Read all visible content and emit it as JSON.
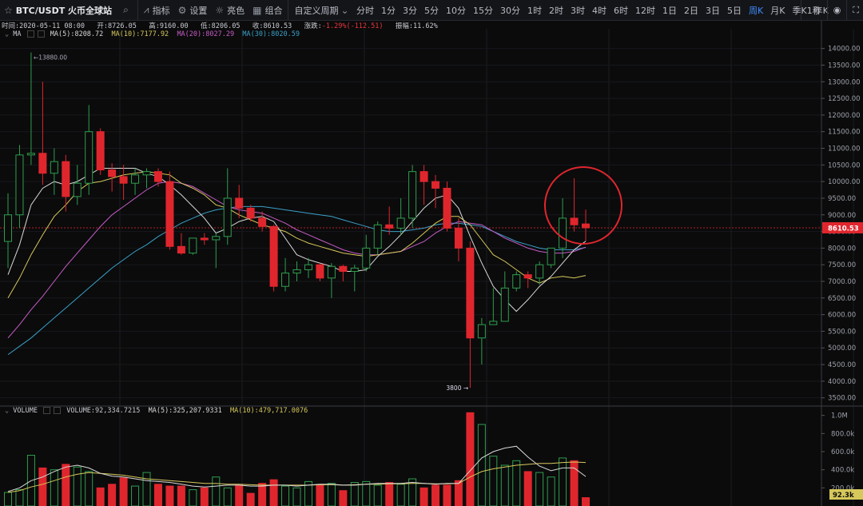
{
  "toolbar": {
    "symbol": "BTC/USDT 火币全球站",
    "indicators_label": "指标",
    "settings_label": "设置",
    "theme_label": "亮色",
    "combo_label": "组合",
    "custom_period_label": "自定义周期",
    "periods": [
      "分时",
      "1分",
      "3分",
      "5分",
      "10分",
      "15分",
      "30分",
      "1时",
      "2时",
      "3时",
      "4时",
      "6时",
      "12时",
      "1日",
      "2日",
      "3日",
      "5日",
      "周K",
      "月K",
      "季K",
      "年K"
    ],
    "active_period": "周K",
    "interval_label": "1秒"
  },
  "info": {
    "time_label": "时间:",
    "time": "2020-05-11 08:00",
    "open_label": "开:",
    "open": "8726.05",
    "high_label": "高:",
    "high": "9160.00",
    "low_label": "低:",
    "low": "8206.05",
    "close_label": "收:",
    "close": "8610.53",
    "change_label": "涨跌:",
    "change": "-1.29%(-112.51)",
    "amp_label": "振幅:",
    "amp": "11.62%"
  },
  "ma_legend": {
    "name": "MA",
    "ma5": "MA(5):8208.72",
    "ma10": "MA(10):7177.92",
    "ma20": "MA(20):8027.29",
    "ma30": "MA(30):8020.59"
  },
  "vol_legend": {
    "name": "VOLUME",
    "vol": "VOLUME:92,334.7215",
    "ma5": "MA(5):325,207.9331",
    "ma10": "MA(10):479,717.0076"
  },
  "colors": {
    "up": "#2f9e4d",
    "down": "#e0262d",
    "ma5": "#d8d8d8",
    "ma10": "#d6c85a",
    "ma20": "#c65cc6",
    "ma30": "#3aa0c8",
    "annotation": "#e0262d"
  },
  "chart_data": [
    {
      "type": "candlestick",
      "price_axis": {
        "ticks": [
          "14000.00",
          "13500.00",
          "13000.00",
          "12500.00",
          "12000.00",
          "11500.00",
          "11000.00",
          "10500.00",
          "10000.00",
          "9500.00",
          "9000.00",
          "8500.00",
          "8000.00",
          "7500.00",
          "7000.00",
          "6500.00",
          "6000.00",
          "5500.00",
          "5000.00",
          "4500.00",
          "4000.00",
          "3500.00"
        ],
        "ylim": [
          3300,
          14400
        ]
      },
      "current_price": "8610.53",
      "high_marker": "←13880.00",
      "low_marker": "3800 →",
      "candles": [
        [
          8200,
          9650,
          7400,
          9000
        ],
        [
          9000,
          11100,
          8600,
          10800
        ],
        [
          10800,
          13880,
          10500,
          10850
        ],
        [
          10850,
          13000,
          9900,
          10250
        ],
        [
          10250,
          11000,
          9600,
          10600
        ],
        [
          10600,
          10800,
          9100,
          9550
        ],
        [
          9550,
          10500,
          9300,
          9950
        ],
        [
          9950,
          12300,
          9600,
          11500
        ],
        [
          11500,
          11600,
          10200,
          10350
        ],
        [
          10350,
          10550,
          9700,
          10150
        ],
        [
          10150,
          10500,
          9450,
          9950
        ],
        [
          9950,
          10400,
          9600,
          10200
        ],
        [
          10200,
          10400,
          9800,
          10300
        ],
        [
          10300,
          10400,
          9850,
          10000
        ],
        [
          10000,
          10300,
          7950,
          8050
        ],
        [
          8050,
          8450,
          7800,
          7850
        ],
        [
          7850,
          8300,
          7800,
          8300
        ],
        [
          8300,
          8450,
          8100,
          8250
        ],
        [
          8250,
          8450,
          7400,
          8350
        ],
        [
          8350,
          10400,
          8100,
          9500
        ],
        [
          9500,
          9900,
          8900,
          9200
        ],
        [
          9200,
          9300,
          8800,
          8900
        ],
        [
          8900,
          9100,
          8500,
          8650
        ],
        [
          8650,
          8700,
          6700,
          6850
        ],
        [
          6850,
          7700,
          6700,
          7250
        ],
        [
          7250,
          7600,
          7000,
          7350
        ],
        [
          7350,
          7700,
          7100,
          7500
        ],
        [
          7500,
          7550,
          7000,
          7100
        ],
        [
          7100,
          7550,
          6500,
          7450
        ],
        [
          7450,
          7500,
          7000,
          7300
        ],
        [
          7300,
          7500,
          6700,
          7400
        ],
        [
          7400,
          8400,
          7300,
          8000
        ],
        [
          8000,
          8800,
          7800,
          8700
        ],
        [
          8700,
          9250,
          8400,
          8600
        ],
        [
          8600,
          9500,
          8400,
          8900
        ],
        [
          8900,
          10500,
          8600,
          10300
        ],
        [
          10300,
          10500,
          9300,
          10000
        ],
        [
          10000,
          10200,
          9200,
          9800
        ],
        [
          9800,
          10000,
          8500,
          8600
        ],
        [
          8600,
          8900,
          7600,
          8000
        ],
        [
          8000,
          8200,
          3800,
          5300
        ],
        [
          5300,
          5900,
          4500,
          5700
        ],
        [
          5700,
          6800,
          5700,
          5800
        ],
        [
          5800,
          7300,
          5800,
          6800
        ],
        [
          6800,
          7300,
          6700,
          7200
        ],
        [
          7200,
          7300,
          6800,
          7100
        ],
        [
          7100,
          7600,
          6900,
          7500
        ],
        [
          7500,
          8000,
          7400,
          8000
        ],
        [
          8000,
          9500,
          7700,
          8900
        ],
        [
          8900,
          10100,
          8500,
          8700
        ],
        [
          8726.05,
          9160,
          8206.05,
          8610.53
        ]
      ],
      "ma5": [
        7200,
        8100,
        9300,
        9800,
        10000,
        9900,
        10000,
        10200,
        10400,
        10400,
        10400,
        10400,
        10250,
        10150,
        9900,
        9600,
        9250,
        8900,
        8450,
        8600,
        8800,
        8900,
        8950,
        8800,
        8300,
        7800,
        7650,
        7550,
        7450,
        7300,
        7300,
        7350,
        7750,
        8050,
        8400,
        8800,
        9200,
        9500,
        9600,
        9200,
        8350,
        7550,
        6850,
        6450,
        6100,
        6450,
        6850,
        7150,
        7550,
        7950,
        8208.72
      ],
      "ma10": [
        6500,
        7100,
        7800,
        8400,
        8950,
        9300,
        9700,
        9950,
        10000,
        10100,
        10200,
        10250,
        10300,
        10250,
        10200,
        9950,
        9800,
        9600,
        9300,
        9200,
        9000,
        8850,
        8700,
        8600,
        8500,
        8300,
        8150,
        8050,
        7950,
        7850,
        7800,
        7750,
        7800,
        7850,
        7900,
        8150,
        8450,
        8750,
        8950,
        8950,
        8700,
        8250,
        7800,
        7600,
        7350,
        7100,
        6950,
        7100,
        7150,
        7100,
        7177.92
      ],
      "ma20": [
        5300,
        5700,
        6150,
        6550,
        7000,
        7450,
        7850,
        8250,
        8650,
        9000,
        9250,
        9500,
        9750,
        9950,
        10000,
        9950,
        9850,
        9650,
        9450,
        9250,
        9150,
        9100,
        9050,
        8900,
        8750,
        8550,
        8400,
        8250,
        8100,
        7950,
        7850,
        7800,
        7800,
        7850,
        7900,
        8050,
        8200,
        8450,
        8650,
        8800,
        8750,
        8700,
        8500,
        8300,
        8150,
        8000,
        7900,
        7850,
        7850,
        7900,
        8027.29
      ],
      "ma30": [
        4800,
        5050,
        5300,
        5600,
        5900,
        6200,
        6500,
        6800,
        7100,
        7400,
        7650,
        7900,
        8100,
        8350,
        8550,
        8750,
        8900,
        9050,
        9150,
        9200,
        9250,
        9250,
        9250,
        9200,
        9150,
        9100,
        9050,
        9000,
        8950,
        8850,
        8750,
        8650,
        8550,
        8500,
        8500,
        8550,
        8600,
        8700,
        8750,
        8750,
        8700,
        8650,
        8500,
        8350,
        8200,
        8100,
        8000,
        7950,
        7950,
        7950,
        8020.59
      ]
    },
    {
      "type": "bar",
      "volume_axis": {
        "ticks": [
          "1.0M",
          "800.0k",
          "600.0k",
          "400.0k",
          "200.0k"
        ],
        "ylim": [
          0,
          1050000
        ]
      },
      "current_volume": "92.3k",
      "values": [
        150000,
        180000,
        560000,
        420000,
        400000,
        460000,
        430000,
        380000,
        200000,
        240000,
        310000,
        220000,
        370000,
        240000,
        220000,
        220000,
        180000,
        200000,
        320000,
        200000,
        230000,
        140000,
        250000,
        290000,
        220000,
        200000,
        270000,
        230000,
        250000,
        170000,
        260000,
        270000,
        230000,
        260000,
        240000,
        300000,
        200000,
        230000,
        230000,
        280000,
        1030000,
        900000,
        550000,
        450000,
        500000,
        380000,
        370000,
        320000,
        530000,
        500000,
        92334.7215
      ],
      "ma5": [
        160000,
        200000,
        280000,
        320000,
        380000,
        430000,
        450000,
        420000,
        360000,
        330000,
        320000,
        300000,
        280000,
        270000,
        260000,
        240000,
        220000,
        210000,
        220000,
        230000,
        230000,
        220000,
        220000,
        230000,
        230000,
        220000,
        230000,
        240000,
        240000,
        230000,
        230000,
        240000,
        250000,
        250000,
        250000,
        260000,
        250000,
        240000,
        250000,
        250000,
        390000,
        530000,
        600000,
        640000,
        660000,
        540000,
        440000,
        390000,
        420000,
        420000,
        325207.9331
      ],
      "ma10": [
        150000,
        170000,
        210000,
        240000,
        280000,
        320000,
        350000,
        370000,
        360000,
        350000,
        340000,
        320000,
        300000,
        290000,
        280000,
        270000,
        260000,
        250000,
        250000,
        240000,
        240000,
        235000,
        230000,
        230000,
        230000,
        230000,
        230000,
        235000,
        235000,
        230000,
        235000,
        240000,
        240000,
        245000,
        245000,
        250000,
        250000,
        245000,
        245000,
        250000,
        320000,
        380000,
        410000,
        430000,
        450000,
        460000,
        470000,
        470000,
        480000,
        485000,
        479717.0076
      ]
    }
  ]
}
